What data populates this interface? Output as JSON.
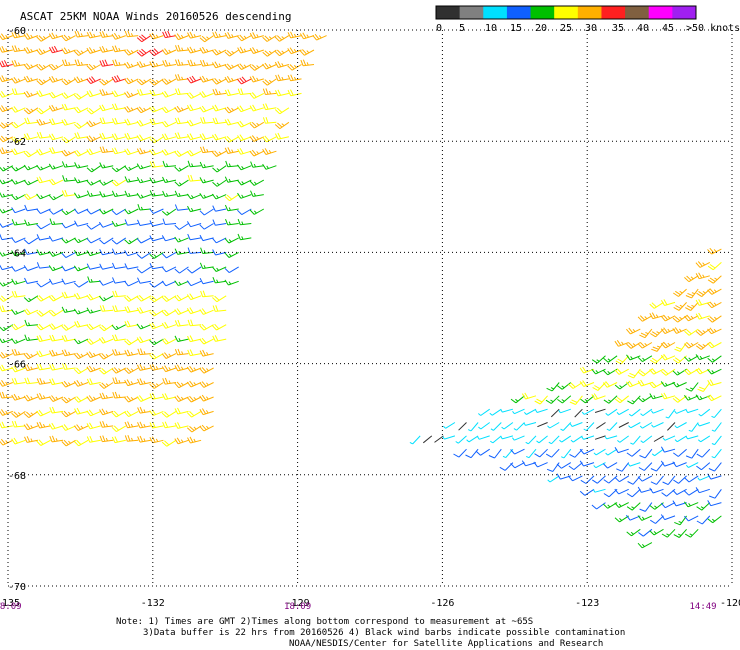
{
  "chart_data": {
    "type": "scatter",
    "title": "ASCAT 25KM NOAA Winds 20160526 descending",
    "x_ticks": [
      "-135",
      "-132",
      "-129",
      "-126",
      "-123",
      "-120"
    ],
    "y_ticks": [
      "-60",
      "-62",
      "-64",
      "-66",
      "-68",
      "-70"
    ],
    "xlim": [
      -135,
      -120
    ],
    "ylim": [
      -70,
      -60
    ],
    "grid": true,
    "color_scale": {
      "labels": [
        "0",
        "5",
        "10",
        "15",
        "20",
        "25",
        "30",
        "35",
        "40",
        "45",
        ">50 knots"
      ],
      "colors": [
        "#303030",
        "#808080",
        "#00e0ff",
        "#1060ff",
        "#00c000",
        "#ffff00",
        "#ffb000",
        "#ff2020",
        "#806040",
        "#ff00ff",
        "#a020f0"
      ]
    },
    "time_labels": [
      "18:09",
      "18:09",
      "14:49"
    ],
    "time_label_lons": [
      -135,
      -129,
      -120.6
    ],
    "swaths": [
      {
        "name": "west",
        "polygon": [
          [
            -135,
            -60
          ],
          [
            -128.3,
            -60
          ],
          [
            -129.2,
            -62
          ],
          [
            -130.0,
            -64
          ],
          [
            -130.6,
            -66
          ],
          [
            -130.8,
            -67.6
          ],
          [
            -135,
            -67.6
          ]
        ]
      },
      {
        "name": "east",
        "polygon": [
          [
            -120,
            -63.7
          ],
          [
            -120,
            -68.8
          ],
          [
            -121.7,
            -69.3
          ],
          [
            -123.0,
            -68.2
          ],
          [
            -126.6,
            -67.3
          ],
          [
            -122.8,
            -66.0
          ]
        ]
      }
    ],
    "wind_bands": [
      {
        "lat_from": -60,
        "lat_to": -61.0,
        "speed_kt": 28
      },
      {
        "lat_from": -61.0,
        "lat_to": -62.2,
        "speed_kt": 24
      },
      {
        "lat_from": -62.2,
        "lat_to": -63.2,
        "speed_kt": 18
      },
      {
        "lat_from": -63.2,
        "lat_to": -64.6,
        "speed_kt": 14
      },
      {
        "lat_from": -64.6,
        "lat_to": -65.6,
        "speed_kt": 22
      },
      {
        "lat_from": -65.6,
        "lat_to": -67.6,
        "speed_kt": 26
      }
    ],
    "east_wind_bands": [
      {
        "lat_from": -63.7,
        "lat_to": -65.8,
        "speed_kt": 27
      },
      {
        "lat_from": -65.8,
        "lat_to": -66.6,
        "speed_kt": 20
      },
      {
        "lat_from": -66.6,
        "lat_to": -67.4,
        "speed_kt": 7
      },
      {
        "lat_from": -67.4,
        "lat_to": -68.3,
        "speed_kt": 12
      },
      {
        "lat_from": -68.3,
        "lat_to": -69.4,
        "speed_kt": 16
      }
    ]
  },
  "notes": {
    "line1": "Note: 1) Times are GMT 2)Times along bottom correspond to measurement at ~65S",
    "line2": "3)Data buffer is 22 hrs from 20160526 4) Black wind barbs indicate possible contamination",
    "line3": "NOAA/NESDIS/Center for Satellite Applications and Research"
  }
}
